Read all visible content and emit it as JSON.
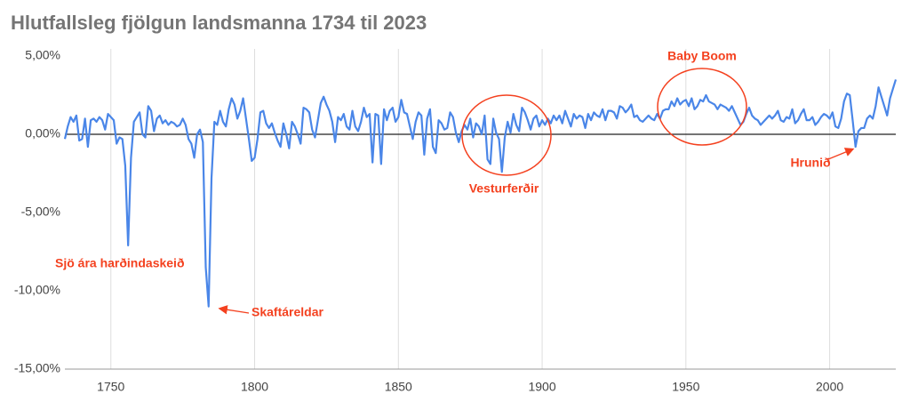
{
  "chart_data": {
    "type": "line",
    "title": "Hlutfallsleg fjölgun landsmanna 1734 til 2023",
    "color": "#4a86e8",
    "x": [
      1734,
      1735,
      1736,
      1737,
      1738,
      1739,
      1740,
      1741,
      1742,
      1743,
      1744,
      1745,
      1746,
      1747,
      1748,
      1749,
      1750,
      1751,
      1752,
      1753,
      1754,
      1755,
      1756,
      1757,
      1758,
      1759,
      1760,
      1761,
      1762,
      1763,
      1764,
      1765,
      1766,
      1767,
      1768,
      1769,
      1770,
      1771,
      1772,
      1773,
      1774,
      1775,
      1776,
      1777,
      1778,
      1779,
      1780,
      1781,
      1782,
      1783,
      1784,
      1785,
      1786,
      1787,
      1788,
      1789,
      1790,
      1791,
      1792,
      1793,
      1794,
      1795,
      1796,
      1797,
      1798,
      1799,
      1800,
      1801,
      1802,
      1803,
      1804,
      1805,
      1806,
      1807,
      1808,
      1809,
      1810,
      1811,
      1812,
      1813,
      1814,
      1815,
      1816,
      1817,
      1818,
      1819,
      1820,
      1821,
      1822,
      1823,
      1824,
      1825,
      1826,
      1827,
      1828,
      1829,
      1830,
      1831,
      1832,
      1833,
      1834,
      1835,
      1836,
      1837,
      1838,
      1839,
      1840,
      1841,
      1842,
      1843,
      1844,
      1845,
      1846,
      1847,
      1848,
      1849,
      1850,
      1851,
      1852,
      1853,
      1854,
      1855,
      1856,
      1857,
      1858,
      1859,
      1860,
      1861,
      1862,
      1863,
      1864,
      1865,
      1866,
      1867,
      1868,
      1869,
      1870,
      1871,
      1872,
      1873,
      1874,
      1875,
      1876,
      1877,
      1878,
      1879,
      1880,
      1881,
      1882,
      1883,
      1884,
      1885,
      1886,
      1887,
      1888,
      1889,
      1890,
      1891,
      1892,
      1893,
      1894,
      1895,
      1896,
      1897,
      1898,
      1899,
      1900,
      1901,
      1902,
      1903,
      1904,
      1905,
      1906,
      1907,
      1908,
      1909,
      1910,
      1911,
      1912,
      1913,
      1914,
      1915,
      1916,
      1917,
      1918,
      1919,
      1920,
      1921,
      1922,
      1923,
      1924,
      1925,
      1926,
      1927,
      1928,
      1929,
      1930,
      1931,
      1932,
      1933,
      1934,
      1935,
      1936,
      1937,
      1938,
      1939,
      1940,
      1941,
      1942,
      1943,
      1944,
      1945,
      1946,
      1947,
      1948,
      1949,
      1950,
      1951,
      1952,
      1953,
      1954,
      1955,
      1956,
      1957,
      1958,
      1959,
      1960,
      1961,
      1962,
      1963,
      1964,
      1965,
      1966,
      1967,
      1968,
      1969,
      1970,
      1971,
      1972,
      1973,
      1974,
      1975,
      1976,
      1977,
      1978,
      1979,
      1980,
      1981,
      1982,
      1983,
      1984,
      1985,
      1986,
      1987,
      1988,
      1989,
      1990,
      1991,
      1992,
      1993,
      1994,
      1995,
      1996,
      1997,
      1998,
      1999,
      2000,
      2001,
      2002,
      2003,
      2004,
      2005,
      2006,
      2007,
      2008,
      2009,
      2010,
      2011,
      2012,
      2013,
      2014,
      2015,
      2016,
      2017,
      2018,
      2019,
      2020,
      2021,
      2022,
      2023
    ],
    "values": [
      -0.3,
      0.5,
      1.1,
      0.8,
      1.2,
      -0.4,
      -0.3,
      1.0,
      -0.8,
      0.9,
      1.0,
      0.8,
      1.1,
      0.9,
      0.3,
      1.3,
      1.1,
      0.9,
      -0.6,
      -0.2,
      -0.3,
      -2.0,
      -7.1,
      -1.5,
      0.8,
      1.1,
      1.4,
      0.0,
      -0.2,
      1.8,
      1.5,
      0.2,
      1.0,
      1.2,
      0.7,
      0.9,
      0.6,
      0.8,
      0.7,
      0.5,
      0.6,
      1.0,
      0.6,
      -0.3,
      -0.6,
      -1.5,
      0.0,
      0.3,
      -0.5,
      -8.5,
      -11.0,
      -2.8,
      0.8,
      0.6,
      1.5,
      0.8,
      0.5,
      1.6,
      2.3,
      1.9,
      1.0,
      1.5,
      2.3,
      1.0,
      -0.3,
      -1.7,
      -1.5,
      -0.3,
      1.4,
      1.5,
      0.7,
      0.4,
      0.7,
      0.1,
      -0.4,
      -0.8,
      0.7,
      0.0,
      -0.9,
      0.8,
      0.5,
      0.0,
      -0.6,
      1.7,
      1.6,
      1.4,
      0.3,
      -0.2,
      0.9,
      2.0,
      2.4,
      1.9,
      1.5,
      0.8,
      -0.5,
      1.1,
      0.9,
      1.3,
      0.5,
      0.3,
      1.5,
      0.5,
      0.2,
      0.8,
      1.7,
      1.1,
      1.3,
      -1.8,
      1.3,
      1.2,
      -1.9,
      1.6,
      0.9,
      1.5,
      1.7,
      0.8,
      1.1,
      2.2,
      1.4,
      1.3,
      0.5,
      -0.3,
      0.8,
      1.4,
      1.2,
      -1.3,
      1.0,
      1.6,
      -0.8,
      -1.2,
      0.9,
      0.7,
      0.3,
      0.4,
      1.4,
      1.1,
      0.1,
      -0.5,
      0.2,
      0.6,
      0.3,
      1.0,
      -0.2,
      0.7,
      0.5,
      0.0,
      1.2,
      -1.6,
      -1.9,
      1.0,
      0.1,
      -0.3,
      -2.4,
      -0.2,
      0.8,
      0.1,
      1.3,
      0.6,
      0.2,
      1.7,
      1.4,
      0.9,
      0.3,
      1.0,
      1.2,
      0.5,
      0.9,
      0.6,
      1.0,
      0.7,
      1.2,
      0.9,
      1.2,
      0.7,
      1.5,
      1.0,
      0.5,
      1.3,
      1.0,
      1.2,
      1.1,
      0.4,
      1.3,
      0.9,
      1.4,
      1.2,
      1.1,
      1.6,
      0.9,
      1.5,
      1.5,
      1.4,
      1.0,
      1.8,
      1.7,
      1.4,
      1.6,
      1.9,
      1.1,
      1.2,
      0.9,
      0.8,
      1.0,
      1.2,
      1.0,
      0.9,
      1.3,
      1.0,
      1.5,
      1.6,
      1.6,
      2.1,
      1.8,
      2.3,
      1.9,
      2.1,
      2.2,
      1.8,
      2.3,
      1.6,
      1.8,
      2.2,
      2.1,
      2.5,
      2.1,
      2.0,
      1.9,
      1.6,
      1.9,
      1.8,
      1.7,
      1.5,
      1.8,
      1.4,
      1.0,
      0.6,
      0.8,
      1.3,
      1.7,
      1.2,
      1.0,
      0.9,
      0.6,
      0.8,
      1.0,
      1.2,
      1.0,
      1.2,
      1.5,
      0.9,
      0.8,
      1.1,
      1.0,
      1.6,
      0.7,
      0.9,
      1.3,
      1.6,
      0.9,
      0.9,
      1.1,
      0.6,
      0.8,
      1.1,
      1.3,
      1.2,
      1.0,
      1.4,
      0.5,
      0.4,
      1.0,
      2.1,
      2.6,
      2.5,
      0.9,
      -0.8,
      0.2,
      0.4,
      0.4,
      1.0,
      1.2,
      1.0,
      1.8,
      3.0,
      2.4,
      1.8,
      1.2,
      2.3,
      2.9,
      3.5
    ],
    "xlim": [
      1734,
      2023
    ],
    "xticks": [
      1750,
      1800,
      1850,
      1900,
      1950,
      2000
    ],
    "ylim": [
      -15,
      5
    ],
    "yticks": [
      {
        "value": 5,
        "label": "5,00%"
      },
      {
        "value": 0,
        "label": "0,00%"
      },
      {
        "value": -5,
        "label": "-5,00%"
      },
      {
        "value": -10,
        "label": "-10,00%"
      },
      {
        "value": -15,
        "label": "-15,00%"
      }
    ],
    "grid": true,
    "annotations": [
      {
        "text": "Sjö ára harðindaskeið"
      },
      {
        "text": "Skaftáreldar"
      },
      {
        "text": "Vesturferðir"
      },
      {
        "text": "Baby Boom"
      },
      {
        "text": "Hrunið"
      }
    ]
  }
}
